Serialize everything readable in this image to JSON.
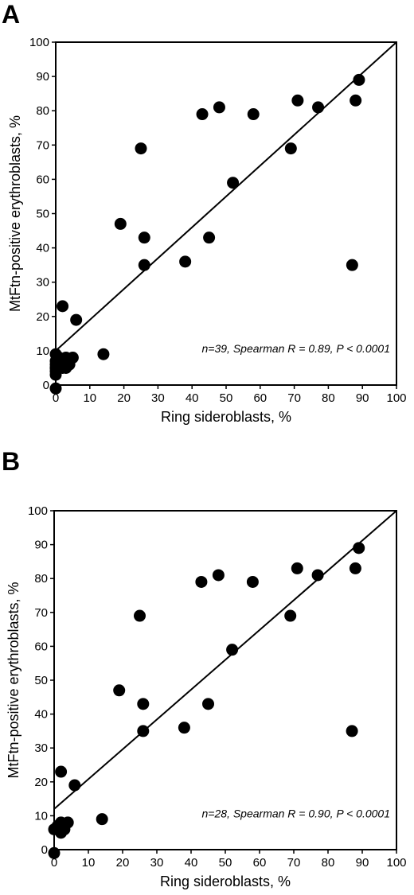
{
  "chart_data": [
    {
      "type": "scatter",
      "panel_label": "A",
      "xlabel": "Ring sideroblasts, %",
      "ylabel": "MtFtn-positive erythroblasts, %",
      "xlim": [
        0,
        100
      ],
      "ylim": [
        0,
        100
      ],
      "xticks": [
        "0",
        "10",
        "20",
        "30",
        "40",
        "50",
        "60",
        "70",
        "80",
        "90",
        "100"
      ],
      "yticks": [
        "0",
        "10",
        "20",
        "30",
        "40",
        "50",
        "60",
        "70",
        "80",
        "90",
        "100"
      ],
      "annotation": "n=39, Spearman R = 0.89, P < 0.0001",
      "grid": false,
      "points": {
        "x": [
          0,
          0,
          0,
          0,
          1,
          1,
          2,
          3,
          4,
          5,
          2,
          6,
          14,
          0,
          19,
          25,
          26,
          26,
          38,
          43,
          45,
          48,
          52,
          58,
          69,
          71,
          77,
          87,
          88,
          89,
          0,
          1,
          2,
          3,
          0,
          1,
          2,
          4,
          0
        ],
        "y": [
          -1,
          3,
          5,
          9,
          7,
          8,
          6,
          5,
          6,
          8,
          23,
          19,
          9,
          6,
          47,
          69,
          43,
          35,
          36,
          79,
          43,
          81,
          59,
          79,
          69,
          83,
          81,
          35,
          83,
          89,
          4,
          5,
          7,
          8,
          7,
          6,
          5,
          7,
          5
        ]
      },
      "fit_line": {
        "x": [
          0,
          100
        ],
        "y": [
          10,
          100
        ]
      }
    },
    {
      "type": "scatter",
      "panel_label": "B",
      "xlabel": "Ring sideroblasts, %",
      "ylabel": "MtFtn-positive erythroblasts, %",
      "xlim": [
        0,
        100
      ],
      "ylim": [
        0,
        100
      ],
      "xticks": [
        "0",
        "10",
        "20",
        "30",
        "40",
        "50",
        "60",
        "70",
        "80",
        "90",
        "100"
      ],
      "yticks": [
        "0",
        "10",
        "20",
        "30",
        "40",
        "50",
        "60",
        "70",
        "80",
        "90",
        "100"
      ],
      "annotation": "n=28, Spearman R = 0.90, P < 0.0001",
      "grid": false,
      "points": {
        "x": [
          0,
          0,
          1,
          2,
          2,
          3,
          4,
          2,
          6,
          14,
          19,
          25,
          26,
          26,
          38,
          43,
          45,
          48,
          52,
          58,
          69,
          71,
          77,
          87,
          88,
          89,
          1,
          3
        ],
        "y": [
          -1,
          6,
          6,
          5,
          8,
          7,
          8,
          23,
          19,
          9,
          47,
          69,
          43,
          35,
          36,
          79,
          43,
          81,
          59,
          79,
          69,
          83,
          81,
          35,
          83,
          89,
          7,
          6
        ]
      },
      "fit_line": {
        "x": [
          0,
          100
        ],
        "y": [
          12,
          100
        ]
      }
    }
  ]
}
